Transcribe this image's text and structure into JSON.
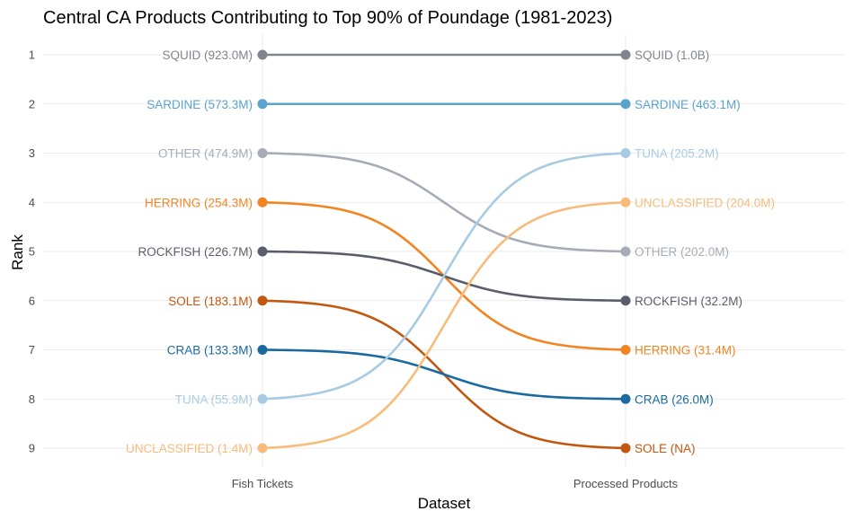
{
  "chart_data": {
    "type": "line",
    "title": "Central CA Products Contributing to Top 90% of Poundage (1981-2023)",
    "xlabel": "Dataset",
    "ylabel": "Rank",
    "categories": [
      "Fish Tickets",
      "Processed Products"
    ],
    "y_ticks": [
      "1",
      "2",
      "3",
      "4",
      "5",
      "6",
      "7",
      "8",
      "9"
    ],
    "ylim": [
      1,
      9
    ],
    "y_reversed": true,
    "grid": true,
    "legend": "none",
    "series": [
      {
        "name": "SQUID",
        "color": "#7f858d",
        "ranks": [
          1,
          1
        ],
        "labels": [
          "SQUID (923.0M)",
          "SQUID (1.0B)"
        ]
      },
      {
        "name": "SARDINE",
        "color": "#5ba3cf",
        "ranks": [
          2,
          2
        ],
        "labels": [
          "SARDINE (573.3M)",
          "SARDINE (463.1M)"
        ]
      },
      {
        "name": "OTHER",
        "color": "#a5acb6",
        "ranks": [
          3,
          5
        ],
        "labels": [
          "OTHER (474.9M)",
          "OTHER (202.0M)"
        ]
      },
      {
        "name": "HERRING",
        "color": "#f28421",
        "ranks": [
          4,
          7
        ],
        "labels": [
          "HERRING (254.3M)",
          "HERRING (31.4M)"
        ]
      },
      {
        "name": "ROCKFISH",
        "color": "#5a5e6b",
        "ranks": [
          5,
          6
        ],
        "labels": [
          "ROCKFISH (226.7M)",
          "ROCKFISH (32.2M)"
        ]
      },
      {
        "name": "SOLE",
        "color": "#c2580f",
        "ranks": [
          6,
          9
        ],
        "labels": [
          "SOLE (183.1M)",
          "SOLE (NA)"
        ]
      },
      {
        "name": "CRAB",
        "color": "#1a6aa0",
        "ranks": [
          7,
          8
        ],
        "labels": [
          "CRAB (133.3M)",
          "CRAB (26.0M)"
        ]
      },
      {
        "name": "TUNA",
        "color": "#a6cbe2",
        "ranks": [
          8,
          3
        ],
        "labels": [
          "TUNA (55.9M)",
          "TUNA (205.2M)"
        ]
      },
      {
        "name": "UNCLASSIFIED",
        "color": "#f9bb7a",
        "ranks": [
          9,
          4
        ],
        "labels": [
          "UNCLASSIFIED (1.4M)",
          "UNCLASSIFIED (204.0M)"
        ]
      }
    ]
  }
}
